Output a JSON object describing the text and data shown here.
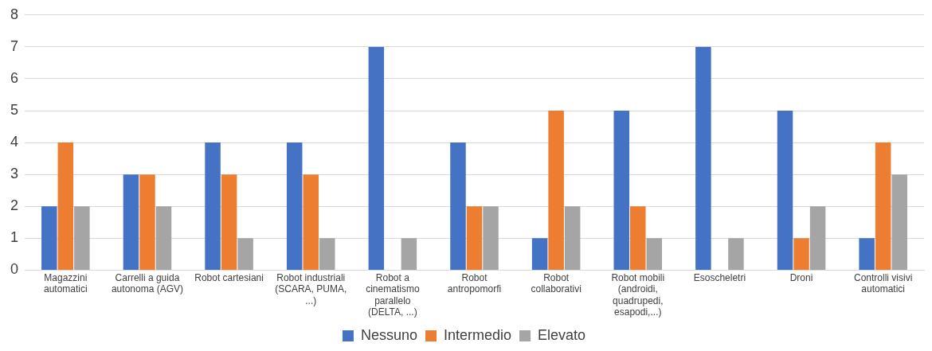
{
  "chart_data": {
    "type": "bar",
    "categories": [
      "Magazzini automatici",
      "Carrelli a guida autonoma (AGV)",
      "Robot cartesiani",
      "Robot industriali (SCARA, PUMA, ...)",
      "Robot a cinematismo parallelo (DELTA, ...)",
      "Robot antropomorfi",
      "Robot collaborativi",
      "Robot mobili (androidi, quadrupedi, esapodi,...)",
      "Esoscheletri",
      "Droni",
      "Controlli visivi automatici"
    ],
    "series": [
      {
        "name": "Nessuno",
        "color": "#4472c4",
        "values": [
          2,
          3,
          4,
          4,
          7,
          4,
          1,
          5,
          7,
          5,
          1
        ]
      },
      {
        "name": "Intermedio",
        "color": "#ed7d31",
        "values": [
          4,
          3,
          3,
          3,
          0,
          2,
          5,
          2,
          0,
          1,
          4
        ]
      },
      {
        "name": "Elevato",
        "color": "#a5a5a5",
        "values": [
          2,
          2,
          1,
          1,
          1,
          2,
          2,
          1,
          1,
          2,
          3
        ]
      }
    ],
    "ylim": [
      0,
      8
    ],
    "yticks": [
      0,
      1,
      2,
      3,
      4,
      5,
      6,
      7,
      8
    ],
    "grid": "y",
    "legend": "bottom"
  }
}
